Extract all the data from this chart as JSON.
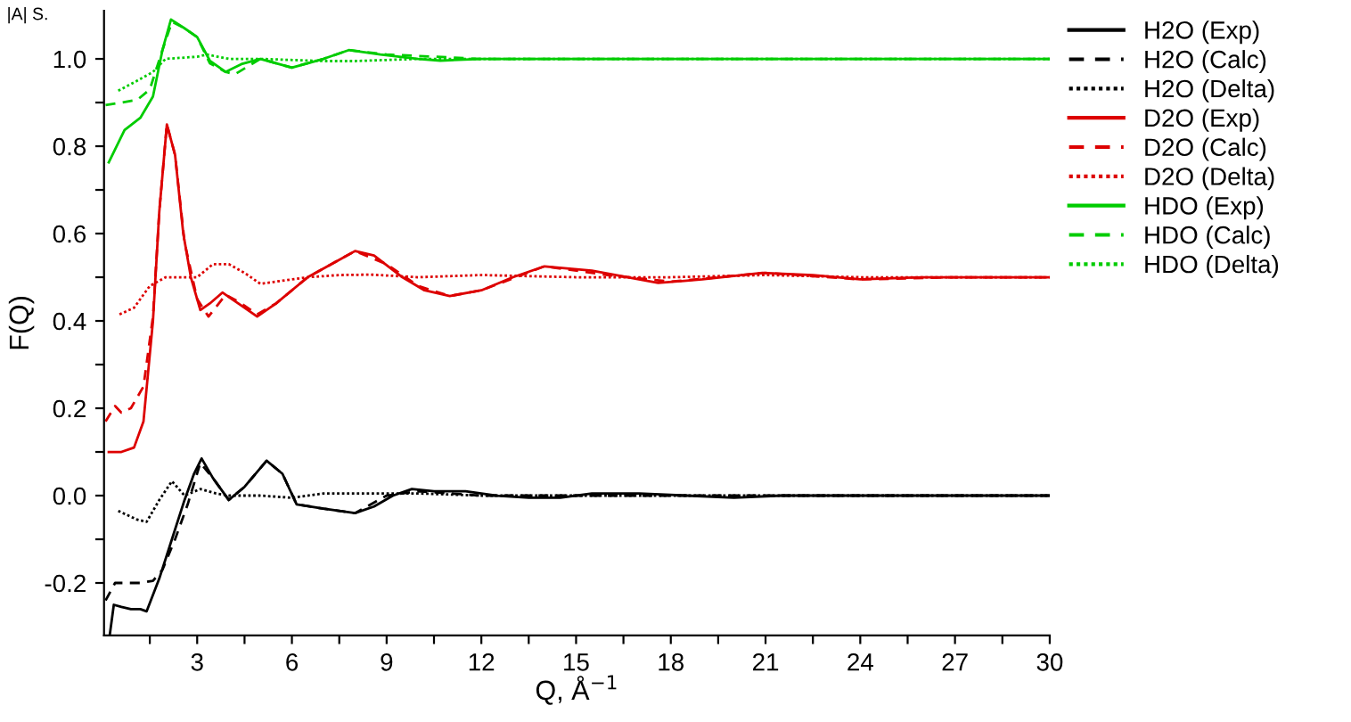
{
  "chart_data": {
    "type": "line",
    "xlabel": "Q, Å$^{−1}$",
    "ylabel": "F(Q)",
    "annotations": [
      "|A| S."
    ],
    "xlim": [
      0.05,
      30
    ],
    "ylim": [
      -0.32,
      1.11
    ],
    "xticks": [
      {
        "value": 1.5,
        "label": null
      },
      3,
      {
        "value": 4.5,
        "label": null
      },
      6,
      {
        "value": 7.5,
        "label": null
      },
      9,
      {
        "value": 10.5,
        "label": null
      },
      12,
      {
        "value": 13.5,
        "label": null
      },
      15,
      {
        "value": 16.5,
        "label": null
      },
      18,
      {
        "value": 19.5,
        "label": null
      },
      21,
      {
        "value": 22.5,
        "label": null
      },
      24,
      {
        "value": 25.5,
        "label": null
      },
      27,
      {
        "value": 28.5,
        "label": null
      },
      30
    ],
    "yticks": [
      {
        "value": -0.2,
        "label": "-0.2"
      },
      {
        "value": -0.1,
        "label": null
      },
      {
        "value": 0.0,
        "label": "0.0"
      },
      {
        "value": 0.1,
        "label": null
      },
      {
        "value": 0.2,
        "label": "0.2"
      },
      {
        "value": 0.3,
        "label": null
      },
      {
        "value": 0.4,
        "label": "0.4"
      },
      {
        "value": 0.5,
        "label": null
      },
      {
        "value": 0.6,
        "label": "0.6"
      },
      {
        "value": 0.7,
        "label": null
      },
      {
        "value": 0.8,
        "label": "0.8"
      },
      {
        "value": 0.9,
        "label": null
      },
      {
        "value": 1.0,
        "label": "1.0"
      }
    ],
    "grid": false,
    "legend": "top right",
    "series": [
      {
        "name": "H2O (Exp)",
        "color": "#000000",
        "line_style": "solid",
        "x": [
          0.23,
          0.36,
          0.6,
          0.9,
          1.2,
          1.4,
          1.8,
          2.2,
          2.6,
          2.9,
          3.14,
          3.5,
          4.0,
          4.5,
          5.2,
          5.7,
          6.15,
          7.0,
          8.0,
          8.6,
          9.2,
          9.8,
          10.5,
          11.5,
          12.5,
          13.5,
          14.5,
          15.5,
          17,
          18.5,
          20,
          21.5,
          23,
          25,
          27,
          29,
          30
        ],
        "values": [
          -0.32,
          -0.25,
          -0.255,
          -0.26,
          -0.26,
          -0.265,
          -0.19,
          -0.1,
          -0.01,
          0.05,
          0.085,
          0.04,
          -0.01,
          0.02,
          0.08,
          0.05,
          -0.02,
          -0.03,
          -0.04,
          -0.025,
          0.0,
          0.015,
          0.01,
          0.01,
          0.0,
          -0.005,
          -0.005,
          0.005,
          0.005,
          0.0,
          -0.005,
          0.0,
          0.0,
          0.0,
          0.0,
          0.0,
          0.0
        ]
      },
      {
        "name": "H2O (Calc)",
        "color": "#000000",
        "line_style": "dashed",
        "x": [
          0.1,
          0.4,
          0.8,
          1.2,
          1.6,
          1.9,
          2.3,
          2.7,
          3.1,
          3.5,
          4.0,
          4.5,
          5.2,
          5.7,
          6.15,
          7,
          8,
          9,
          10,
          12,
          15,
          20,
          25,
          30
        ],
        "values": [
          -0.24,
          -0.2,
          -0.2,
          -0.2,
          -0.195,
          -0.17,
          -0.1,
          -0.02,
          0.075,
          0.04,
          -0.01,
          0.02,
          0.08,
          0.05,
          -0.02,
          -0.03,
          -0.04,
          0.0,
          0.01,
          0.0,
          0.0,
          0.0,
          0.0,
          0.0
        ]
      },
      {
        "name": "H2O (Delta)",
        "color": "#000000",
        "line_style": "dotted",
        "x": [
          0.5,
          0.8,
          1.1,
          1.4,
          1.8,
          2.2,
          2.6,
          3.1,
          3.6,
          4.0,
          5,
          6,
          7,
          8,
          10,
          12,
          15,
          20,
          25,
          30
        ],
        "values": [
          -0.035,
          -0.045,
          -0.055,
          -0.06,
          -0.01,
          0.033,
          0.0,
          0.015,
          0.005,
          0.0,
          0.0,
          -0.005,
          0.005,
          0.005,
          0.005,
          0.0,
          0.0,
          0.0,
          0.0,
          0.0
        ]
      },
      {
        "name": "D2O (Exp)",
        "color": "#dd0000",
        "line_style": "solid",
        "x": [
          0.2,
          0.6,
          1.0,
          1.3,
          1.6,
          1.8,
          2.04,
          2.3,
          2.56,
          2.8,
          3.1,
          3.4,
          3.8,
          4.3,
          4.9,
          5.5,
          6.5,
          7.5,
          8.0,
          8.6,
          9.5,
          10.2,
          11.0,
          12,
          13,
          14,
          15.5,
          17.6,
          19,
          20.9,
          22.5,
          24,
          26,
          28,
          30
        ],
        "values": [
          0.1,
          0.1,
          0.11,
          0.17,
          0.4,
          0.65,
          0.85,
          0.78,
          0.6,
          0.5,
          0.425,
          0.44,
          0.465,
          0.44,
          0.41,
          0.44,
          0.5,
          0.54,
          0.56,
          0.55,
          0.5,
          0.47,
          0.457,
          0.47,
          0.5,
          0.525,
          0.515,
          0.487,
          0.495,
          0.51,
          0.505,
          0.495,
          0.5,
          0.5,
          0.5
        ]
      },
      {
        "name": "D2O (Calc)",
        "color": "#dd0000",
        "line_style": "dashed",
        "x": [
          0.1,
          0.4,
          0.6,
          0.9,
          1.3,
          1.6,
          1.8,
          2.04,
          2.3,
          2.6,
          3.0,
          3.36,
          3.9,
          4.4,
          4.9,
          5.5,
          6.5,
          7.5,
          8,
          9,
          10,
          11,
          12,
          14,
          16,
          18,
          21,
          24,
          27,
          30
        ],
        "values": [
          0.17,
          0.205,
          0.19,
          0.2,
          0.25,
          0.41,
          0.65,
          0.85,
          0.78,
          0.58,
          0.45,
          0.41,
          0.46,
          0.44,
          0.415,
          0.44,
          0.5,
          0.54,
          0.56,
          0.53,
          0.48,
          0.457,
          0.47,
          0.525,
          0.505,
          0.49,
          0.51,
          0.495,
          0.5,
          0.5
        ]
      },
      {
        "name": "D2O (Delta)",
        "color": "#dd0000",
        "line_style": "dotted",
        "x": [
          0.54,
          1.0,
          1.5,
          2.0,
          2.5,
          3.0,
          3.5,
          4.0,
          4.5,
          5.0,
          5.5,
          6.5,
          7.5,
          8.5,
          10,
          12,
          15,
          18,
          21,
          24,
          27,
          30
        ],
        "values": [
          0.415,
          0.43,
          0.48,
          0.5,
          0.5,
          0.5,
          0.53,
          0.53,
          0.51,
          0.485,
          0.49,
          0.5,
          0.505,
          0.506,
          0.5,
          0.505,
          0.5,
          0.5,
          0.505,
          0.5,
          0.5,
          0.5
        ]
      },
      {
        "name": "HDO (Exp)",
        "color": "#00cc00",
        "line_style": "solid",
        "x": [
          0.2,
          0.7,
          1.2,
          1.6,
          1.9,
          2.17,
          2.6,
          3.0,
          3.4,
          3.9,
          4.4,
          5.0,
          6.0,
          7.0,
          7.8,
          8.8,
          10,
          10.7,
          12,
          15,
          18,
          21,
          24,
          27,
          30
        ],
        "values": [
          0.763,
          0.837,
          0.865,
          0.914,
          1.02,
          1.09,
          1.07,
          1.05,
          0.996,
          0.97,
          0.988,
          1.0,
          0.98,
          1.0,
          1.02,
          1.01,
          1.0,
          0.996,
          1.0,
          1.0,
          1.0,
          1.0,
          1.0,
          1.0,
          1.0
        ]
      },
      {
        "name": "HDO (Calc)",
        "color": "#00cc00",
        "line_style": "dashed",
        "x": [
          0.1,
          0.6,
          1.1,
          1.5,
          1.9,
          2.2,
          2.6,
          3.0,
          3.4,
          3.9,
          4.2,
          5.0,
          6.0,
          7.0,
          7.8,
          9,
          12,
          15,
          20,
          25,
          30
        ],
        "values": [
          0.894,
          0.9,
          0.906,
          0.93,
          1.02,
          1.085,
          1.07,
          1.05,
          0.99,
          0.97,
          0.965,
          1.0,
          0.98,
          1.0,
          1.02,
          1.01,
          1.0,
          1.0,
          1.0,
          1.0,
          1.0
        ]
      },
      {
        "name": "HDO (Delta)",
        "color": "#00cc00",
        "line_style": "dotted",
        "x": [
          0.5,
          1.1,
          1.6,
          2.0,
          3.0,
          3.3,
          4.0,
          5,
          7,
          8,
          10,
          15,
          20,
          25,
          30
        ],
        "values": [
          0.927,
          0.95,
          0.97,
          1.0,
          1.005,
          1.01,
          1.0,
          1.0,
          0.995,
          0.995,
          1.0,
          1.0,
          1.0,
          1.0,
          1.0
        ]
      }
    ]
  }
}
